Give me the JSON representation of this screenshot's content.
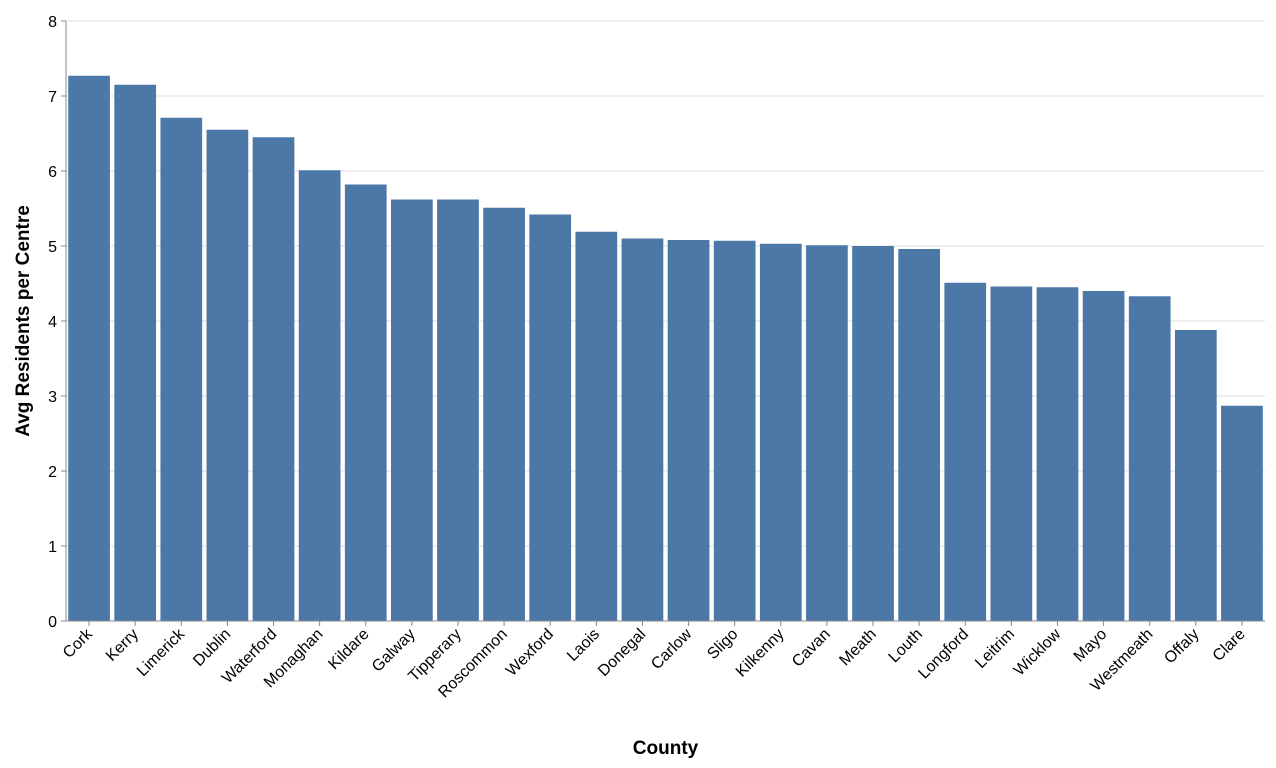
{
  "chart_data": {
    "type": "bar",
    "xlabel": "County",
    "ylabel": "Avg Residents per Centre",
    "ylim": [
      0,
      8
    ],
    "yticks": [
      0,
      1,
      2,
      3,
      4,
      5,
      6,
      7,
      8
    ],
    "grid": true,
    "bar_color": "#4c78a8",
    "categories": [
      "Cork",
      "Kerry",
      "Limerick",
      "Dublin",
      "Waterford",
      "Monaghan",
      "Kildare",
      "Galway",
      "Tipperary",
      "Roscommon",
      "Wexford",
      "Laois",
      "Donegal",
      "Carlow",
      "Sligo",
      "Kilkenny",
      "Cavan",
      "Meath",
      "Louth",
      "Longford",
      "Leitrim",
      "Wicklow",
      "Mayo",
      "Westmeath",
      "Offaly",
      "Clare"
    ],
    "values": [
      7.27,
      7.15,
      6.71,
      6.55,
      6.45,
      6.01,
      5.82,
      5.62,
      5.62,
      5.51,
      5.42,
      5.19,
      5.1,
      5.08,
      5.07,
      5.03,
      5.01,
      5.0,
      4.96,
      4.51,
      4.46,
      4.45,
      4.4,
      4.33,
      3.88,
      2.87
    ]
  }
}
